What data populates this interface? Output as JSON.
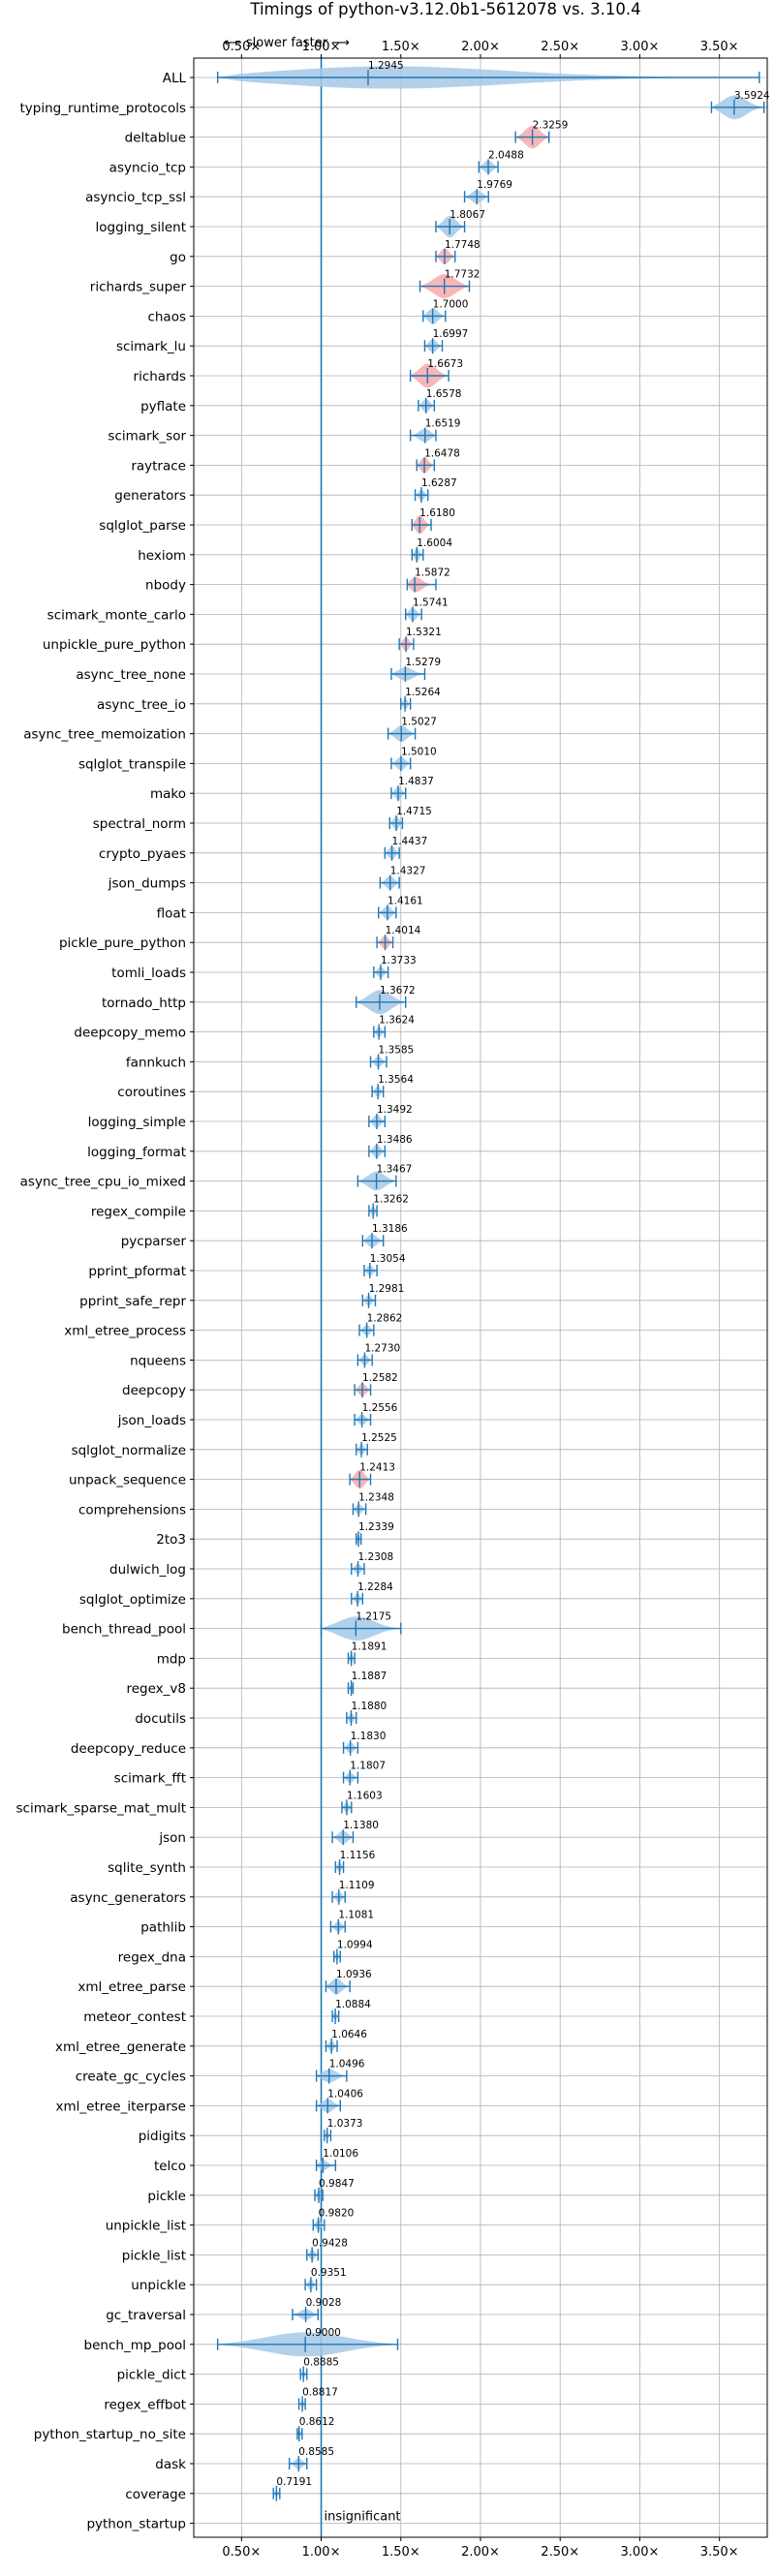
{
  "chart_data": {
    "type": "violin",
    "title": "Timings of python-v3.12.0b1-5612078 vs. 3.10.4",
    "direction_label": "⟵ slower   faster ⟶",
    "xlim": [
      0.2,
      3.8
    ],
    "xticks": [
      0.5,
      1.0,
      1.5,
      2.0,
      2.5,
      3.0,
      3.5
    ],
    "xtick_labels": [
      "0.50×",
      "1.00×",
      "1.50×",
      "2.00×",
      "2.50×",
      "3.00×",
      "3.50×"
    ],
    "reference_line": 1.0,
    "grid": true,
    "insignificant_label": "insignificant",
    "colors": {
      "violin_faster": "#a6c8e6",
      "violin_slower": "#f7a9a9",
      "line": "#1f77b4"
    },
    "benchmarks": [
      {
        "name": "ALL",
        "value": 1.2945,
        "label": "1.2945",
        "min": 0.35,
        "max": 3.75,
        "width": 0.9,
        "color": "blue"
      },
      {
        "name": "typing_runtime_protocols",
        "value": 3.5924,
        "label": "3.5924",
        "min": 3.45,
        "max": 3.78,
        "width": 0.9,
        "color": "blue"
      },
      {
        "name": "deltablue",
        "value": 2.3259,
        "label": "2.3259",
        "min": 2.22,
        "max": 2.43,
        "width": 0.85,
        "color": "red"
      },
      {
        "name": "asyncio_tcp",
        "value": 2.0488,
        "label": "2.0488",
        "min": 1.99,
        "max": 2.11,
        "width": 0.5,
        "color": "blue"
      },
      {
        "name": "asyncio_tcp_ssl",
        "value": 1.9769,
        "label": "1.9769",
        "min": 1.9,
        "max": 2.05,
        "width": 0.5,
        "color": "blue"
      },
      {
        "name": "logging_silent",
        "value": 1.8067,
        "label": "1.8067",
        "min": 1.72,
        "max": 1.9,
        "width": 0.8,
        "color": "blue"
      },
      {
        "name": "go",
        "value": 1.7748,
        "label": "1.7748",
        "min": 1.72,
        "max": 1.84,
        "width": 0.6,
        "color": "red"
      },
      {
        "name": "richards_super",
        "value": 1.7732,
        "label": "1.7732",
        "min": 1.62,
        "max": 1.93,
        "width": 0.9,
        "color": "red"
      },
      {
        "name": "chaos",
        "value": 1.7,
        "label": "1.7000",
        "min": 1.64,
        "max": 1.78,
        "width": 0.6,
        "color": "blue"
      },
      {
        "name": "scimark_lu",
        "value": 1.6997,
        "label": "1.6997",
        "min": 1.65,
        "max": 1.76,
        "width": 0.5,
        "color": "blue"
      },
      {
        "name": "richards",
        "value": 1.6673,
        "label": "1.6673",
        "min": 1.56,
        "max": 1.8,
        "width": 0.9,
        "color": "red"
      },
      {
        "name": "pyflate",
        "value": 1.6578,
        "label": "1.6578",
        "min": 1.61,
        "max": 1.71,
        "width": 0.5,
        "color": "blue"
      },
      {
        "name": "scimark_sor",
        "value": 1.6519,
        "label": "1.6519",
        "min": 1.56,
        "max": 1.72,
        "width": 0.5,
        "color": "blue"
      },
      {
        "name": "raytrace",
        "value": 1.6478,
        "label": "1.6478",
        "min": 1.6,
        "max": 1.71,
        "width": 0.6,
        "color": "red"
      },
      {
        "name": "generators",
        "value": 1.6287,
        "label": "1.6287",
        "min": 1.59,
        "max": 1.67,
        "width": 0.4,
        "color": "blue"
      },
      {
        "name": "sqlglot_parse",
        "value": 1.618,
        "label": "1.6180",
        "min": 1.57,
        "max": 1.69,
        "width": 0.7,
        "color": "red"
      },
      {
        "name": "hexiom",
        "value": 1.6004,
        "label": "1.6004",
        "min": 1.57,
        "max": 1.64,
        "width": 0.5,
        "color": "blue"
      },
      {
        "name": "nbody",
        "value": 1.5872,
        "label": "1.5872",
        "min": 1.54,
        "max": 1.72,
        "width": 0.6,
        "color": "red"
      },
      {
        "name": "scimark_monte_carlo",
        "value": 1.5741,
        "label": "1.5741",
        "min": 1.53,
        "max": 1.63,
        "width": 0.5,
        "color": "blue"
      },
      {
        "name": "unpickle_pure_python",
        "value": 1.5321,
        "label": "1.5321",
        "min": 1.49,
        "max": 1.58,
        "width": 0.5,
        "color": "red"
      },
      {
        "name": "async_tree_none",
        "value": 1.5279,
        "label": "1.5279",
        "min": 1.44,
        "max": 1.65,
        "width": 0.5,
        "color": "blue"
      },
      {
        "name": "async_tree_io",
        "value": 1.5264,
        "label": "1.5264",
        "min": 1.5,
        "max": 1.56,
        "width": 0.4,
        "color": "blue"
      },
      {
        "name": "async_tree_memoization",
        "value": 1.5027,
        "label": "1.5027",
        "min": 1.42,
        "max": 1.59,
        "width": 0.6,
        "color": "blue"
      },
      {
        "name": "sqlglot_transpile",
        "value": 1.501,
        "label": "1.5010",
        "min": 1.44,
        "max": 1.56,
        "width": 0.5,
        "color": "blue"
      },
      {
        "name": "mako",
        "value": 1.4837,
        "label": "1.4837",
        "min": 1.44,
        "max": 1.53,
        "width": 0.5,
        "color": "blue"
      },
      {
        "name": "spectral_norm",
        "value": 1.4715,
        "label": "1.4715",
        "min": 1.43,
        "max": 1.51,
        "width": 0.5,
        "color": "blue"
      },
      {
        "name": "crypto_pyaes",
        "value": 1.4437,
        "label": "1.4437",
        "min": 1.4,
        "max": 1.49,
        "width": 0.5,
        "color": "blue"
      },
      {
        "name": "json_dumps",
        "value": 1.4327,
        "label": "1.4327",
        "min": 1.37,
        "max": 1.49,
        "width": 0.5,
        "color": "blue"
      },
      {
        "name": "float",
        "value": 1.4161,
        "label": "1.4161",
        "min": 1.36,
        "max": 1.47,
        "width": 0.5,
        "color": "blue"
      },
      {
        "name": "pickle_pure_python",
        "value": 1.4014,
        "label": "1.4014",
        "min": 1.35,
        "max": 1.45,
        "width": 0.5,
        "color": "red"
      },
      {
        "name": "tomli_loads",
        "value": 1.3733,
        "label": "1.3733",
        "min": 1.33,
        "max": 1.42,
        "width": 0.4,
        "color": "blue"
      },
      {
        "name": "tornado_http",
        "value": 1.3672,
        "label": "1.3672",
        "min": 1.22,
        "max": 1.53,
        "width": 0.9,
        "color": "blue"
      },
      {
        "name": "deepcopy_memo",
        "value": 1.3624,
        "label": "1.3624",
        "min": 1.33,
        "max": 1.4,
        "width": 0.4,
        "color": "blue"
      },
      {
        "name": "fannkuch",
        "value": 1.3585,
        "label": "1.3585",
        "min": 1.31,
        "max": 1.41,
        "width": 0.4,
        "color": "blue"
      },
      {
        "name": "coroutines",
        "value": 1.3564,
        "label": "1.3564",
        "min": 1.32,
        "max": 1.39,
        "width": 0.4,
        "color": "blue"
      },
      {
        "name": "logging_simple",
        "value": 1.3492,
        "label": "1.3492",
        "min": 1.3,
        "max": 1.4,
        "width": 0.5,
        "color": "blue"
      },
      {
        "name": "logging_format",
        "value": 1.3486,
        "label": "1.3486",
        "min": 1.3,
        "max": 1.4,
        "width": 0.5,
        "color": "blue"
      },
      {
        "name": "async_tree_cpu_io_mixed",
        "value": 1.3467,
        "label": "1.3467",
        "min": 1.23,
        "max": 1.47,
        "width": 0.7,
        "color": "blue"
      },
      {
        "name": "regex_compile",
        "value": 1.3262,
        "label": "1.3262",
        "min": 1.3,
        "max": 1.35,
        "width": 0.4,
        "color": "blue"
      },
      {
        "name": "pycparser",
        "value": 1.3186,
        "label": "1.3186",
        "min": 1.26,
        "max": 1.39,
        "width": 0.5,
        "color": "blue"
      },
      {
        "name": "pprint_pformat",
        "value": 1.3054,
        "label": "1.3054",
        "min": 1.27,
        "max": 1.35,
        "width": 0.4,
        "color": "blue"
      },
      {
        "name": "pprint_safe_repr",
        "value": 1.2981,
        "label": "1.2981",
        "min": 1.26,
        "max": 1.34,
        "width": 0.4,
        "color": "blue"
      },
      {
        "name": "xml_etree_process",
        "value": 1.2862,
        "label": "1.2862",
        "min": 1.24,
        "max": 1.33,
        "width": 0.4,
        "color": "blue"
      },
      {
        "name": "nqueens",
        "value": 1.273,
        "label": "1.2730",
        "min": 1.23,
        "max": 1.32,
        "width": 0.4,
        "color": "blue"
      },
      {
        "name": "deepcopy",
        "value": 1.2582,
        "label": "1.2582",
        "min": 1.21,
        "max": 1.31,
        "width": 0.5,
        "color": "red"
      },
      {
        "name": "json_loads",
        "value": 1.2556,
        "label": "1.2556",
        "min": 1.21,
        "max": 1.31,
        "width": 0.4,
        "color": "blue"
      },
      {
        "name": "sqlglot_normalize",
        "value": 1.2525,
        "label": "1.2525",
        "min": 1.22,
        "max": 1.29,
        "width": 0.4,
        "color": "blue"
      },
      {
        "name": "unpack_sequence",
        "value": 1.2413,
        "label": "1.2413",
        "min": 1.18,
        "max": 1.31,
        "width": 0.7,
        "color": "red"
      },
      {
        "name": "comprehensions",
        "value": 1.2348,
        "label": "1.2348",
        "min": 1.2,
        "max": 1.28,
        "width": 0.4,
        "color": "blue"
      },
      {
        "name": "2to3",
        "value": 1.2339,
        "label": "1.2339",
        "min": 1.22,
        "max": 1.25,
        "width": 0.4,
        "color": "blue"
      },
      {
        "name": "dulwich_log",
        "value": 1.2308,
        "label": "1.2308",
        "min": 1.19,
        "max": 1.27,
        "width": 0.4,
        "color": "blue"
      },
      {
        "name": "sqlglot_optimize",
        "value": 1.2284,
        "label": "1.2284",
        "min": 1.19,
        "max": 1.26,
        "width": 0.4,
        "color": "blue"
      },
      {
        "name": "bench_thread_pool",
        "value": 1.2175,
        "label": "1.2175",
        "min": 1.0,
        "max": 1.5,
        "width": 0.9,
        "color": "blue"
      },
      {
        "name": "mdp",
        "value": 1.1891,
        "label": "1.1891",
        "min": 1.17,
        "max": 1.21,
        "width": 0.4,
        "color": "blue"
      },
      {
        "name": "regex_v8",
        "value": 1.1887,
        "label": "1.1887",
        "min": 1.17,
        "max": 1.2,
        "width": 0.3,
        "color": "blue"
      },
      {
        "name": "docutils",
        "value": 1.188,
        "label": "1.1880",
        "min": 1.16,
        "max": 1.22,
        "width": 0.4,
        "color": "blue"
      },
      {
        "name": "deepcopy_reduce",
        "value": 1.183,
        "label": "1.1830",
        "min": 1.14,
        "max": 1.23,
        "width": 0.4,
        "color": "blue"
      },
      {
        "name": "scimark_fft",
        "value": 1.1807,
        "label": "1.1807",
        "min": 1.14,
        "max": 1.23,
        "width": 0.4,
        "color": "blue"
      },
      {
        "name": "scimark_sparse_mat_mult",
        "value": 1.1603,
        "label": "1.1603",
        "min": 1.13,
        "max": 1.19,
        "width": 0.4,
        "color": "blue"
      },
      {
        "name": "json",
        "value": 1.138,
        "label": "1.1380",
        "min": 1.07,
        "max": 1.2,
        "width": 0.5,
        "color": "blue"
      },
      {
        "name": "sqlite_synth",
        "value": 1.1156,
        "label": "1.1156",
        "min": 1.09,
        "max": 1.14,
        "width": 0.4,
        "color": "blue"
      },
      {
        "name": "async_generators",
        "value": 1.1109,
        "label": "1.1109",
        "min": 1.07,
        "max": 1.15,
        "width": 0.4,
        "color": "blue"
      },
      {
        "name": "pathlib",
        "value": 1.1081,
        "label": "1.1081",
        "min": 1.06,
        "max": 1.15,
        "width": 0.4,
        "color": "blue"
      },
      {
        "name": "regex_dna",
        "value": 1.0994,
        "label": "1.0994",
        "min": 1.08,
        "max": 1.12,
        "width": 0.3,
        "color": "blue"
      },
      {
        "name": "xml_etree_parse",
        "value": 1.0936,
        "label": "1.0936",
        "min": 1.03,
        "max": 1.18,
        "width": 0.6,
        "color": "blue"
      },
      {
        "name": "meteor_contest",
        "value": 1.0884,
        "label": "1.0884",
        "min": 1.07,
        "max": 1.11,
        "width": 0.3,
        "color": "blue"
      },
      {
        "name": "xml_etree_generate",
        "value": 1.0646,
        "label": "1.0646",
        "min": 1.03,
        "max": 1.1,
        "width": 0.4,
        "color": "blue"
      },
      {
        "name": "create_gc_cycles",
        "value": 1.0496,
        "label": "1.0496",
        "min": 0.97,
        "max": 1.16,
        "width": 0.5,
        "color": "blue"
      },
      {
        "name": "xml_etree_iterparse",
        "value": 1.0406,
        "label": "1.0406",
        "min": 0.97,
        "max": 1.12,
        "width": 0.5,
        "color": "blue"
      },
      {
        "name": "pidigits",
        "value": 1.0373,
        "label": "1.0373",
        "min": 1.02,
        "max": 1.06,
        "width": 0.3,
        "color": "blue"
      },
      {
        "name": "telco",
        "value": 1.0106,
        "label": "1.0106",
        "min": 0.97,
        "max": 1.09,
        "width": 0.4,
        "color": "blue"
      },
      {
        "name": "pickle",
        "value": 0.9847,
        "label": "0.9847",
        "min": 0.96,
        "max": 1.01,
        "width": 0.4,
        "color": "blue"
      },
      {
        "name": "unpickle_list",
        "value": 0.982,
        "label": "0.9820",
        "min": 0.95,
        "max": 1.02,
        "width": 0.4,
        "color": "blue"
      },
      {
        "name": "pickle_list",
        "value": 0.9428,
        "label": "0.9428",
        "min": 0.91,
        "max": 0.98,
        "width": 0.4,
        "color": "blue"
      },
      {
        "name": "unpickle",
        "value": 0.9351,
        "label": "0.9351",
        "min": 0.9,
        "max": 0.97,
        "width": 0.4,
        "color": "blue"
      },
      {
        "name": "gc_traversal",
        "value": 0.9028,
        "label": "0.9028",
        "min": 0.82,
        "max": 0.98,
        "width": 0.4,
        "color": "blue"
      },
      {
        "name": "bench_mp_pool",
        "value": 0.9,
        "label": "0.9000",
        "min": 0.35,
        "max": 1.48,
        "width": 0.9,
        "color": "blue"
      },
      {
        "name": "pickle_dict",
        "value": 0.8885,
        "label": "0.8885",
        "min": 0.87,
        "max": 0.91,
        "width": 0.3,
        "color": "blue"
      },
      {
        "name": "regex_effbot",
        "value": 0.8817,
        "label": "0.8817",
        "min": 0.86,
        "max": 0.9,
        "width": 0.3,
        "color": "blue"
      },
      {
        "name": "python_startup_no_site",
        "value": 0.8612,
        "label": "0.8612",
        "min": 0.85,
        "max": 0.88,
        "width": 0.3,
        "color": "blue"
      },
      {
        "name": "dask",
        "value": 0.8585,
        "label": "0.8585",
        "min": 0.8,
        "max": 0.91,
        "width": 0.4,
        "color": "blue"
      },
      {
        "name": "coverage",
        "value": 0.7191,
        "label": "0.7191",
        "min": 0.7,
        "max": 0.74,
        "width": 0.3,
        "color": "blue"
      },
      {
        "name": "python_startup",
        "value": null,
        "label": "",
        "min": null,
        "max": null,
        "width": 0,
        "color": "blue",
        "insignificant": true
      }
    ]
  }
}
